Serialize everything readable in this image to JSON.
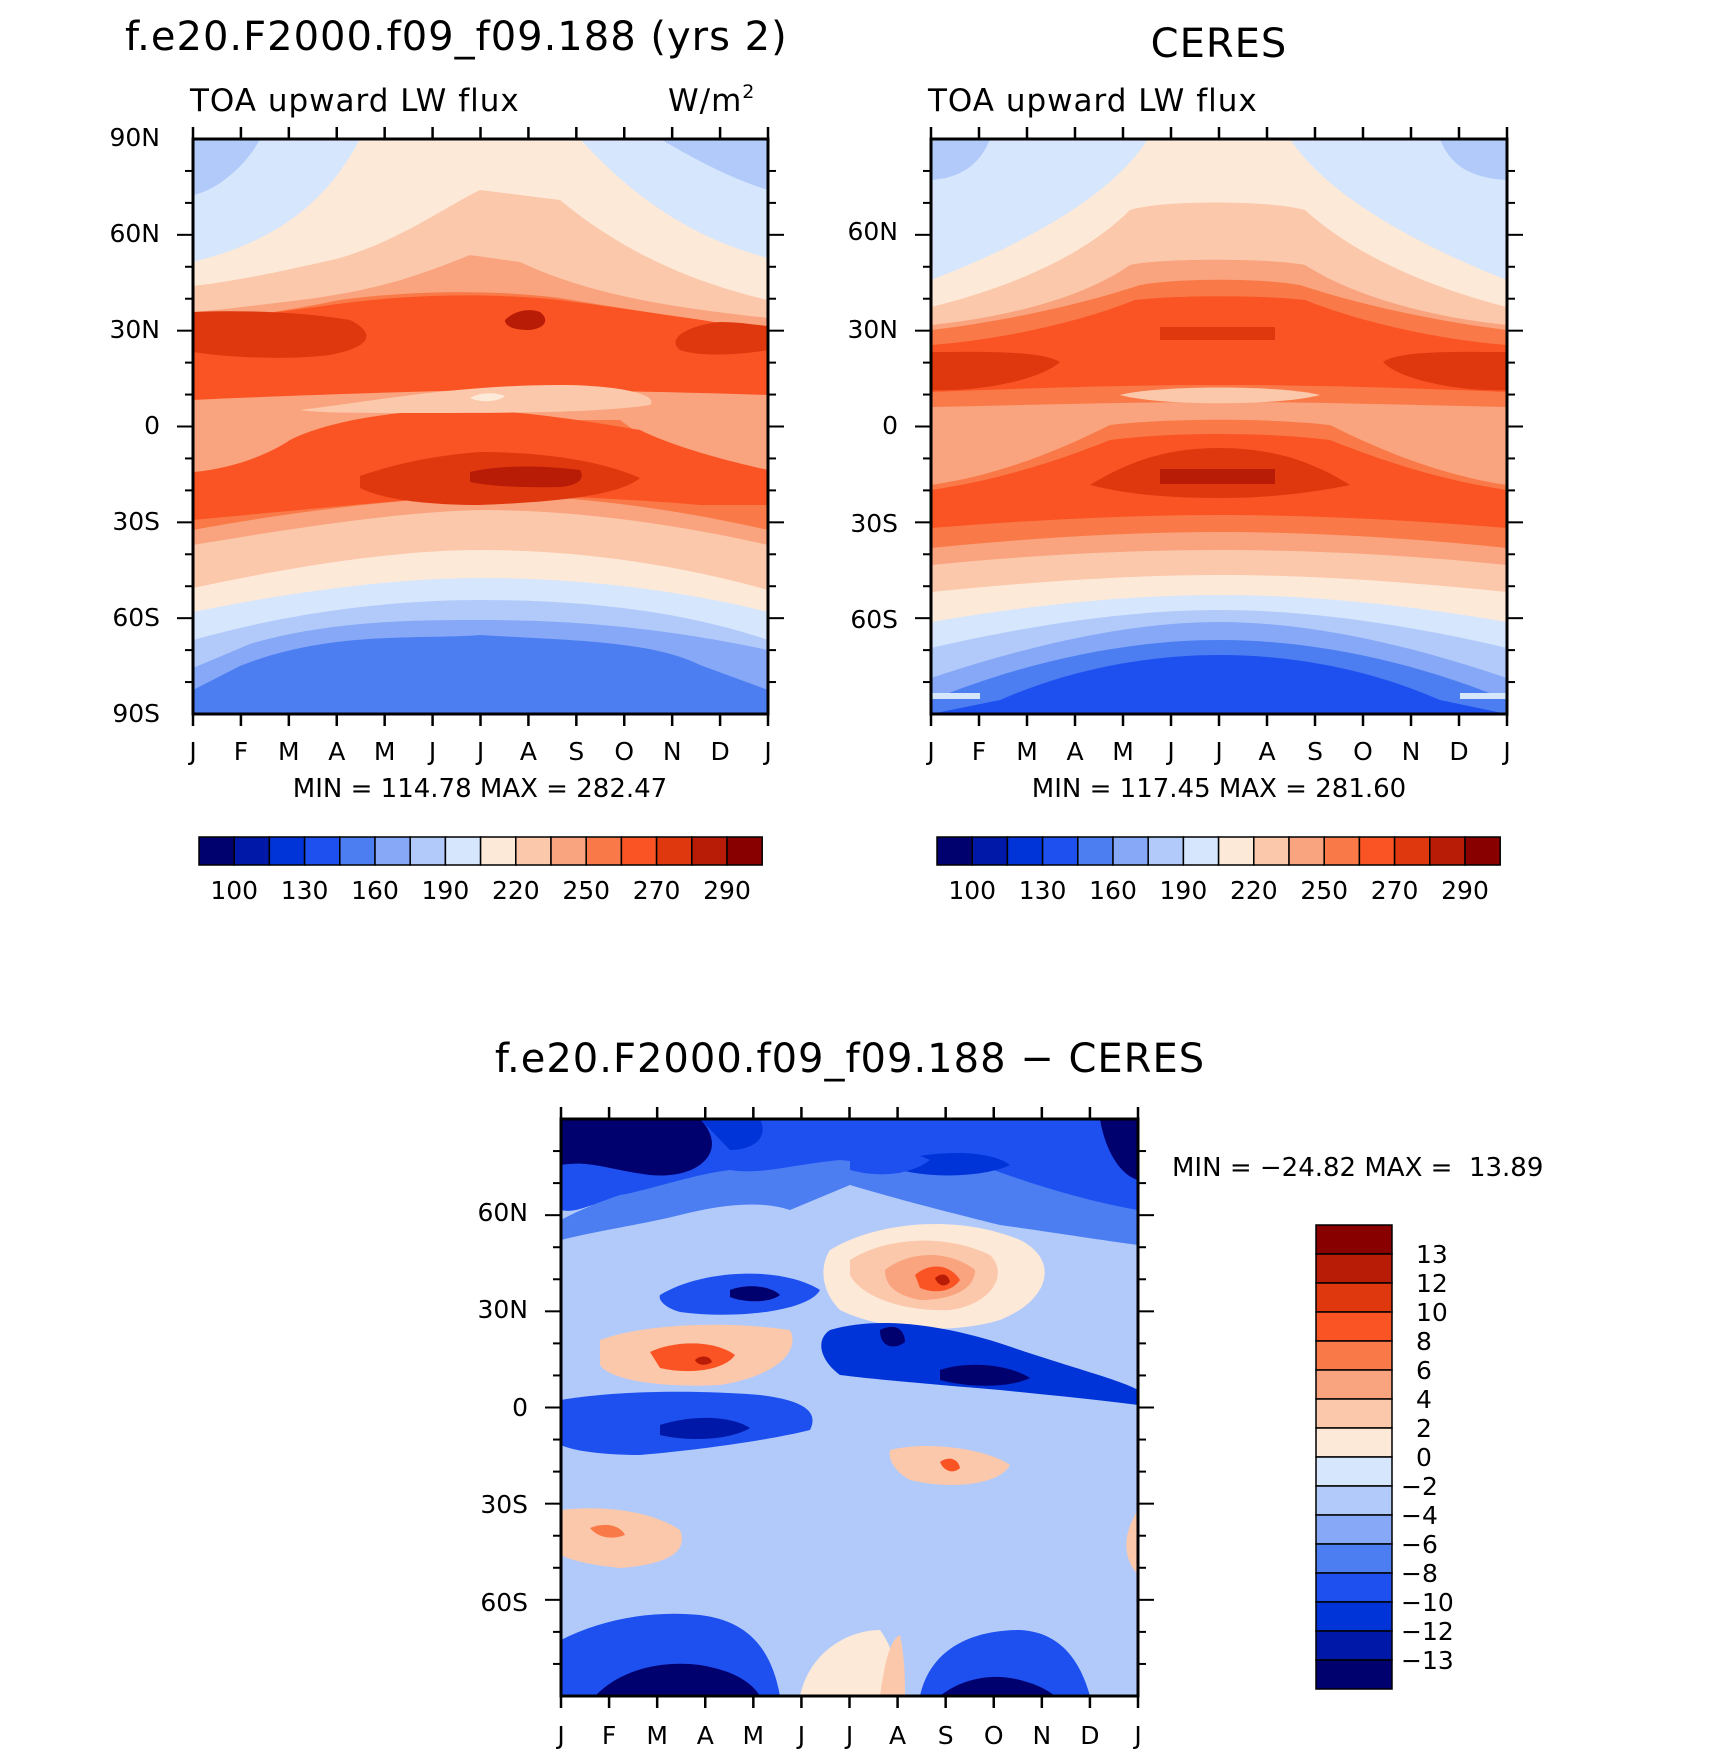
{
  "chart_data": [
    {
      "type": "heatmap",
      "id": "model",
      "title": "f.e20.F2000.f09_f09.188 (yrs 2)",
      "subtitle_left": "TOA upward LW flux",
      "units_base": "W/m",
      "units_exp": "2",
      "x_ticks": [
        "J",
        "F",
        "M",
        "A",
        "M",
        "J",
        "J",
        "A",
        "S",
        "O",
        "N",
        "D",
        "J"
      ],
      "y_ticks": [
        "90N",
        "60N",
        "30N",
        "0",
        "30S",
        "60S",
        "90S"
      ],
      "y_tick_lats": [
        90,
        60,
        30,
        0,
        -30,
        -60,
        -90
      ],
      "ylim": [
        -90,
        90
      ],
      "stats": "MIN = 114.78 MAX = 282.47",
      "min": 114.78,
      "max": 282.47,
      "colorbar_labels": [
        "100",
        "130",
        "160",
        "190",
        "220",
        "250",
        "270",
        "290"
      ]
    },
    {
      "type": "heatmap",
      "id": "obs",
      "title": "CERES",
      "subtitle_left": "TOA upward LW flux",
      "x_ticks": [
        "J",
        "F",
        "M",
        "A",
        "M",
        "J",
        "J",
        "A",
        "S",
        "O",
        "N",
        "D",
        "J"
      ],
      "y_ticks": [
        "60N",
        "30N",
        "0",
        "30S",
        "60S"
      ],
      "y_tick_lats": [
        60,
        30,
        0,
        -30,
        -60
      ],
      "stats": "MIN = 117.45 MAX = 281.60",
      "min": 117.45,
      "max": 281.6,
      "colorbar_labels": [
        "100",
        "130",
        "160",
        "190",
        "220",
        "250",
        "270",
        "290"
      ]
    },
    {
      "type": "heatmap",
      "id": "diff",
      "title": "f.e20.F2000.f09_f09.188 − CERES",
      "x_ticks": [
        "J",
        "F",
        "M",
        "A",
        "M",
        "J",
        "J",
        "A",
        "S",
        "O",
        "N",
        "D",
        "J"
      ],
      "y_ticks": [
        "60N",
        "30N",
        "0",
        "30S",
        "60S"
      ],
      "y_tick_lats": [
        60,
        30,
        0,
        -30,
        -60
      ],
      "stats": "MIN = −24.82 MAX =  13.89",
      "min": -24.82,
      "max": 13.89,
      "colorbar_labels": [
        "13",
        "12",
        "10",
        "8",
        "6",
        "4",
        "2",
        "0",
        "−2",
        "−4",
        "−6",
        "−8",
        "−10",
        "−12",
        "−13"
      ]
    }
  ],
  "palette": [
    "#00006e",
    "#0018a8",
    "#0034d8",
    "#1e50f0",
    "#4c7ef2",
    "#86a8f7",
    "#b2cafa",
    "#d6e6fc",
    "#fde9d8",
    "#fbc8ac",
    "#f9a47e",
    "#f97a48",
    "#fa5424",
    "#e0380e",
    "#b81c06",
    "#880000"
  ],
  "diff_palette": [
    "#880000",
    "#b81c06",
    "#e0380e",
    "#fa5424",
    "#f97a48",
    "#f9a47e",
    "#fbc8ac",
    "#fde9d8",
    "#d6e6fc",
    "#b2cafa",
    "#86a8f7",
    "#4c7ef2",
    "#1e50f0",
    "#0034d8",
    "#0018a8",
    "#00006e"
  ]
}
